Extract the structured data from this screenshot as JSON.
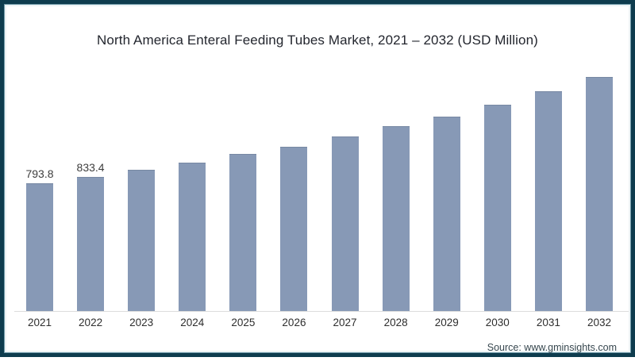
{
  "chart_data": {
    "type": "bar",
    "title": "North America Enteral Feeding Tubes Market, 2021 – 2032 (USD Million)",
    "source": "Source: www.gminsights.com",
    "categories": [
      "2021",
      "2022",
      "2023",
      "2024",
      "2025",
      "2026",
      "2027",
      "2028",
      "2029",
      "2030",
      "2031",
      "2032"
    ],
    "values": [
      793.8,
      833.4,
      880,
      925,
      975,
      1020,
      1085,
      1150,
      1210,
      1285,
      1365,
      1455
    ],
    "bar_labels": [
      "793.8",
      "833.4",
      "",
      "",
      "",
      "",
      "",
      "",
      "",
      "",
      "",
      ""
    ],
    "ylabel": "",
    "xlabel": "",
    "ylim": [
      0,
      1500
    ],
    "grid": false,
    "legend": false,
    "bar_color": "#8799b6",
    "value_label_color": "#3d3d3d",
    "axis_tick_color": "#2e2e2e",
    "title_color": "#23262e",
    "frame_border_color": "#0e3c4e",
    "baseline_color": "#dcdcdc"
  }
}
